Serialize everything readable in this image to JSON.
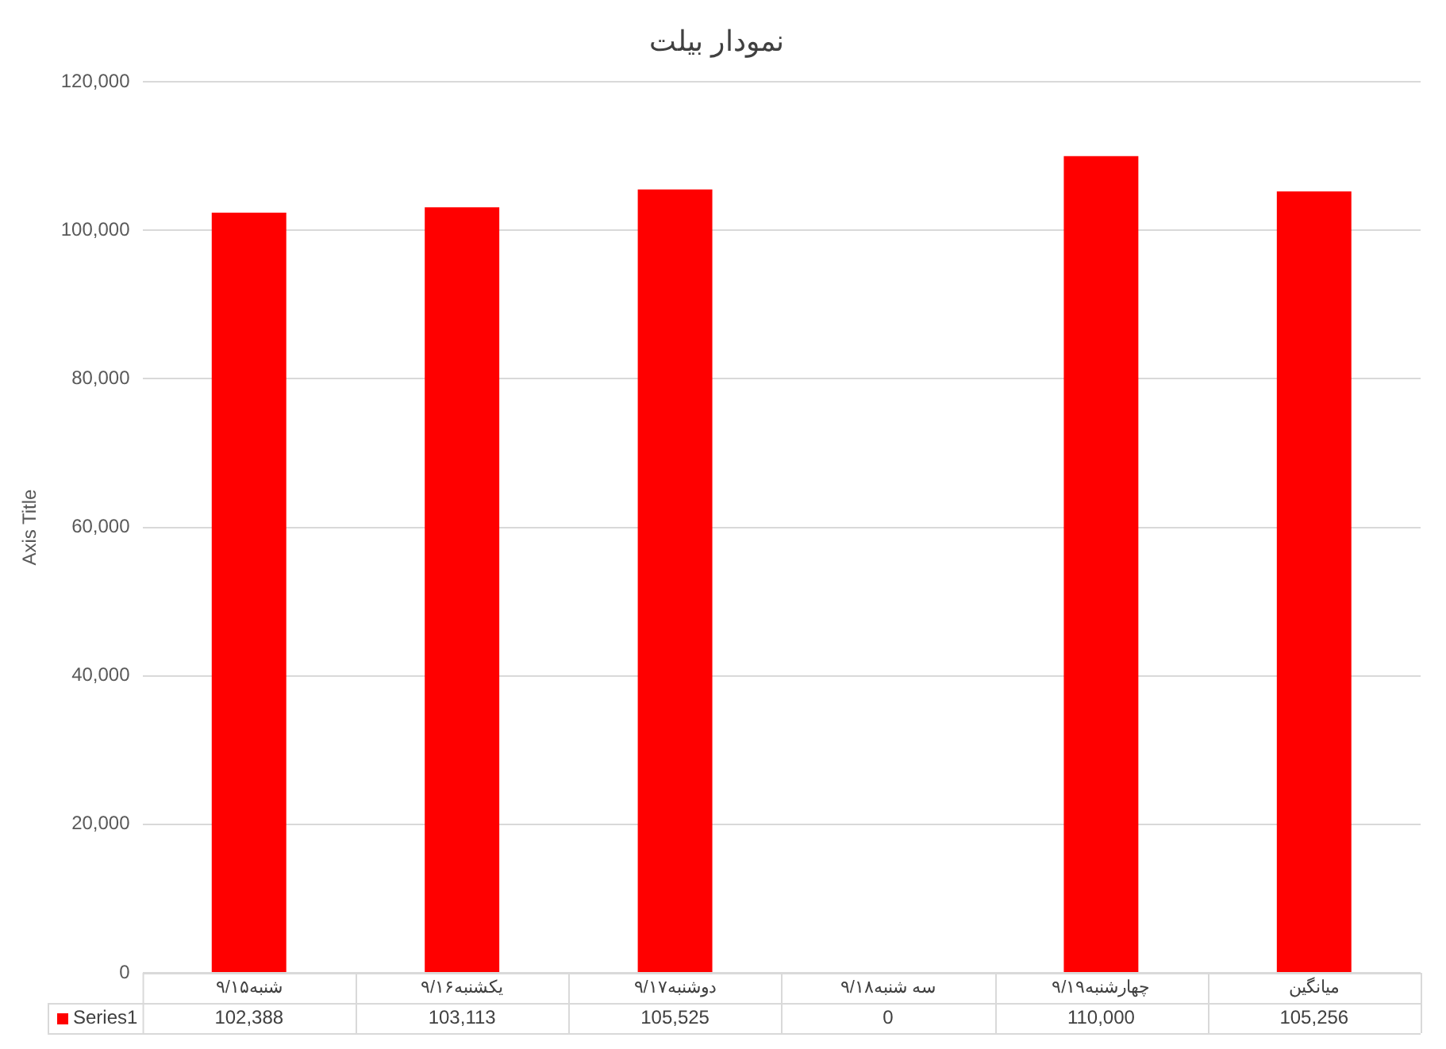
{
  "chart_data": {
    "type": "bar",
    "title": "نمودار بیلت",
    "ylabel": "Axis Title",
    "categories": [
      "شنبه۹/۱۵",
      "یکشنبه۹/۱۶",
      "دوشنبه۹/۱۷",
      "سه شنبه۹/۱۸",
      "چهارشنبه۹/۱۹",
      "میانگین"
    ],
    "series": [
      {
        "name": "Series1",
        "color": "#ff0000",
        "values": [
          102388,
          103113,
          105525,
          0,
          110000,
          105256
        ],
        "value_labels": [
          "102,388",
          "103,113",
          "105,525",
          "0",
          "110,000",
          "105,256"
        ]
      }
    ],
    "ylim": [
      0,
      120000
    ],
    "yticks": [
      0,
      {
        "value": 20000,
        "label": "20,000"
      },
      {
        "value": 40000,
        "label": "40,000"
      },
      {
        "value": 60000,
        "label": "60,000"
      },
      {
        "value": 80000,
        "label": "80,000"
      },
      {
        "value": 100000,
        "label": "100,000"
      },
      {
        "value": 120000,
        "label": "120,000"
      }
    ],
    "grid": "y",
    "legend": "bottom"
  }
}
